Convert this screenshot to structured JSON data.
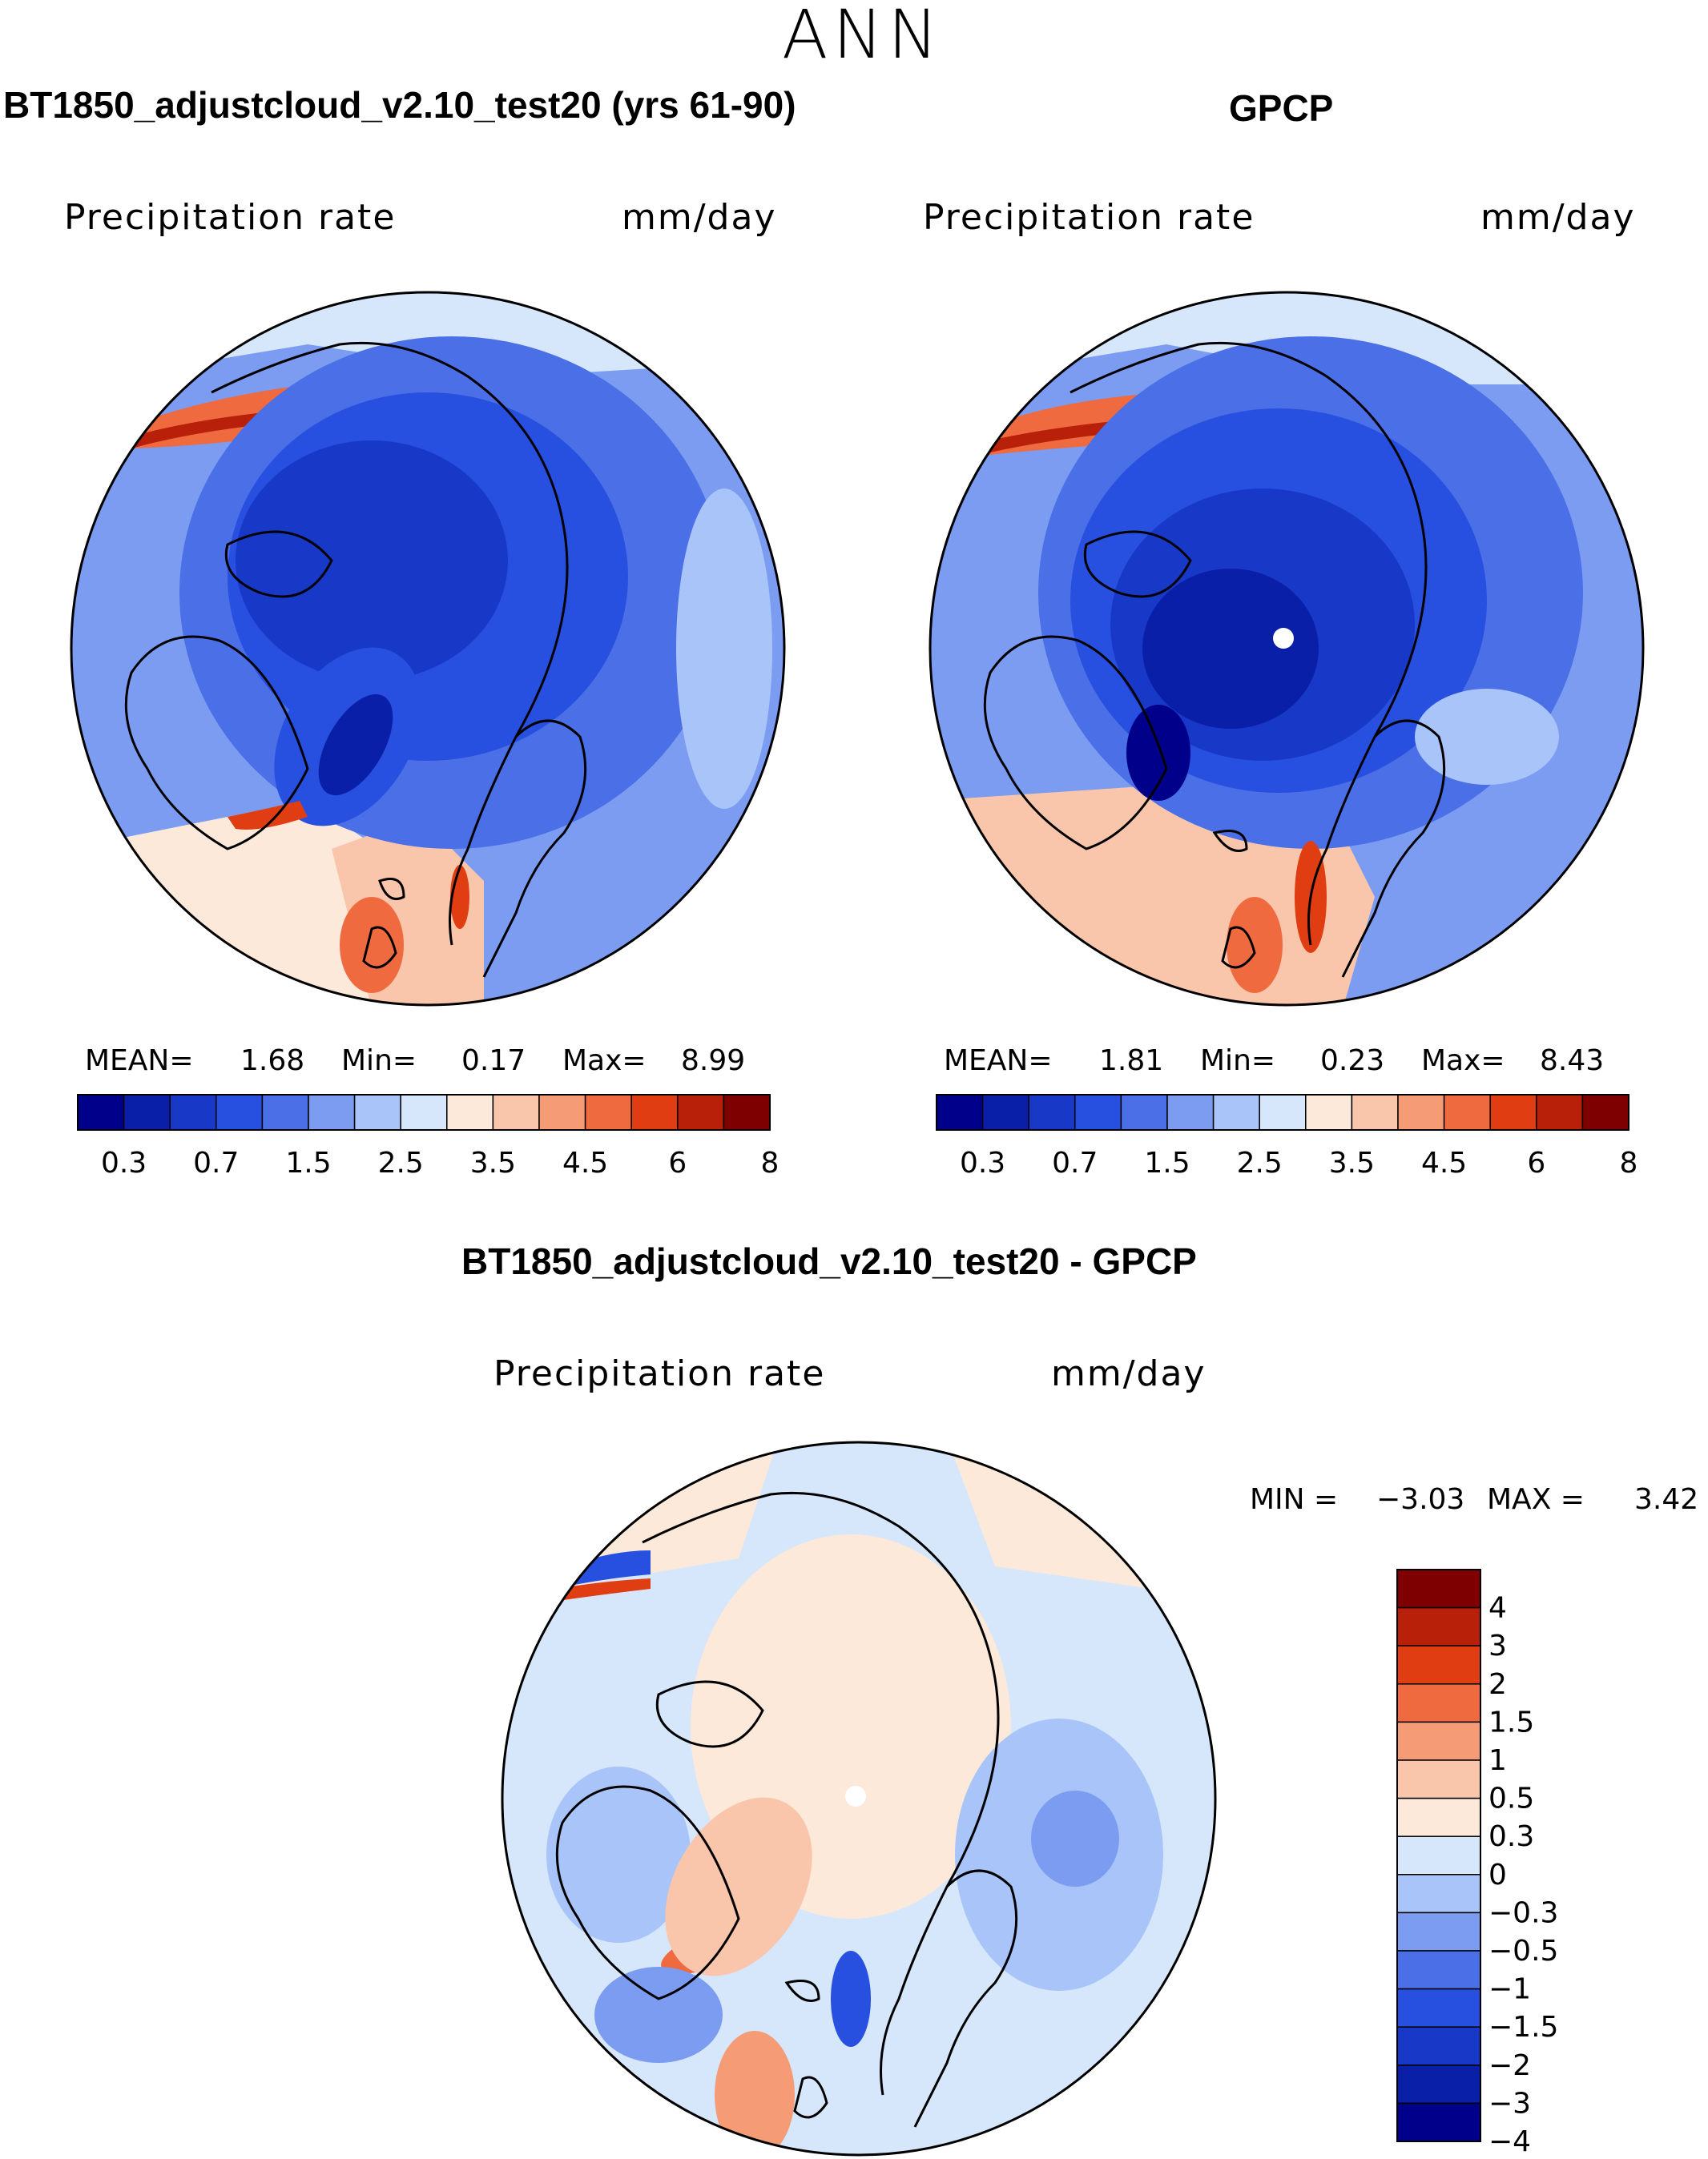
{
  "season": "ANN",
  "panels": [
    {
      "title": "BT1850_adjustcloud_v2.10_test20 (yrs 61-90)",
      "variable": "Precipitation rate",
      "units": "mm/day",
      "stats": {
        "mean_label": "MEAN=",
        "mean": "1.68",
        "min_label": "Min=",
        "min": "0.17",
        "max_label": "Max=",
        "max": "8.99"
      }
    },
    {
      "title": "GPCP",
      "variable": "Precipitation rate",
      "units": "mm/day",
      "stats": {
        "mean_label": "MEAN=",
        "mean": "1.81",
        "min_label": "Min=",
        "min": "0.23",
        "max_label": "Max=",
        "max": "8.43"
      }
    },
    {
      "title": "BT1850_adjustcloud_v2.10_test20 - GPCP",
      "variable": "Precipitation rate",
      "units": "mm/day",
      "stats": {
        "min_label": "MIN =",
        "min": "−3.03",
        "max_label": "MAX =",
        "max": "3.42"
      }
    }
  ],
  "colorbar_abs": {
    "colors": [
      "#00008a",
      "#0a1fa8",
      "#1838c8",
      "#2850e0",
      "#4a6fe6",
      "#7b9cf0",
      "#a8c4f8",
      "#d6e6fb",
      "#fde9da",
      "#f9c6ab",
      "#f59b76",
      "#f06a40",
      "#e03d12",
      "#b8200a",
      "#7f0000"
    ],
    "tick_labels": [
      "0.3",
      "0.7",
      "1.5",
      "2.5",
      "3.5",
      "4.5",
      "6",
      "8"
    ]
  },
  "colorbar_diff": {
    "colors": [
      "#7f0000",
      "#b8200a",
      "#e03d12",
      "#f06a40",
      "#f59b76",
      "#f9c6ab",
      "#fde9da",
      "#d6e6fb",
      "#a8c4f8",
      "#7b9cf0",
      "#4a6fe6",
      "#2850e0",
      "#1838c8",
      "#0a1fa8",
      "#00008a"
    ],
    "tick_labels": [
      "4",
      "3",
      "2",
      "1.5",
      "1",
      "0.5",
      "0.3",
      "0",
      "−0.3",
      "−0.5",
      "−1",
      "−1.5",
      "−2",
      "−3",
      "−4"
    ]
  }
}
